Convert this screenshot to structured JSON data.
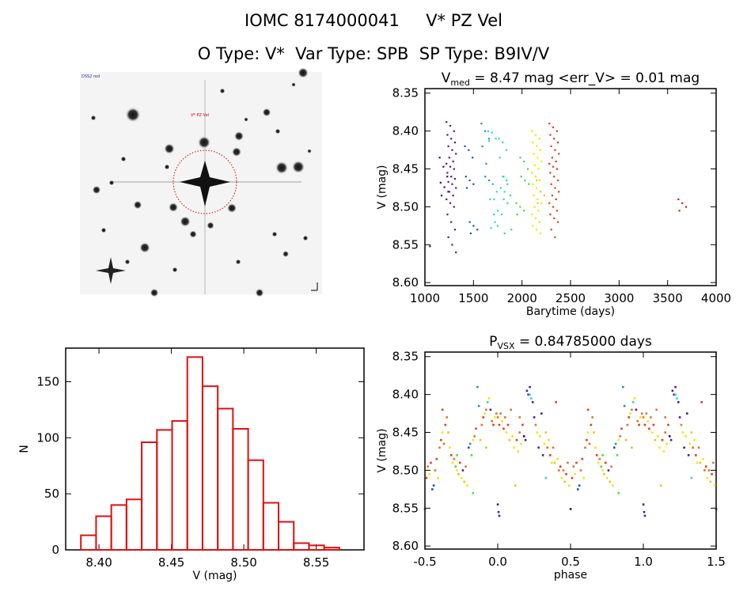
{
  "header": {
    "line1": "IOMC 8174000041     V* PZ Vel",
    "line2": "O Type: V*  Var Type: SPB  SP Type: B9IV/V"
  },
  "finder_image": {
    "survey_label": "DSS2 red",
    "target_label": "V* PZ Vel",
    "target_circle_color": "#cc0000"
  },
  "palette": [
    "#3a0a6a",
    "#4a1aa0",
    "#2050b0",
    "#1e90d8",
    "#30d0e8",
    "#30e090",
    "#40e040",
    "#a0e020",
    "#f0e800",
    "#f0c020",
    "#e87020",
    "#e04010",
    "#d02020"
  ],
  "chart_data": [
    {
      "type": "scatter",
      "title_main": "V",
      "title_sub": "med",
      "title_rest": " = 8.47 mag <err_V> = 0.01 mag",
      "xlabel": "Barytime (days)",
      "ylabel": "V (mag)",
      "xlim": [
        1000,
        4000
      ],
      "ylim": [
        8.344,
        8.604
      ],
      "y_inverted": true,
      "xticks": [
        "1000",
        "1500",
        "2000",
        "2500",
        "3000",
        "3500",
        "4000"
      ],
      "yticks": [
        "8.35",
        "8.40",
        "8.45",
        "8.50",
        "8.55",
        "8.60"
      ],
      "seasons": [
        {
          "t": 1100,
          "c": 0,
          "v": [
            8.552
          ]
        },
        {
          "t": 1200,
          "c": 0,
          "v": [
            8.435,
            8.447,
            8.46,
            8.468,
            8.474,
            8.48,
            8.485
          ]
        },
        {
          "t": 1270,
          "c": 1,
          "v": [
            8.388,
            8.393,
            8.4,
            8.405,
            8.41,
            8.415,
            8.42,
            8.425,
            8.43,
            8.435,
            8.44,
            8.443,
            8.447,
            8.45,
            8.455,
            8.46,
            8.463,
            8.467,
            8.47,
            8.475,
            8.48,
            8.485,
            8.49,
            8.495,
            8.5,
            8.51,
            8.52,
            8.53,
            8.54,
            8.55,
            8.56
          ]
        },
        {
          "t": 1460,
          "c": 2,
          "v": [
            8.42,
            8.425,
            8.435,
            8.46,
            8.465,
            8.47,
            8.475
          ]
        },
        {
          "t": 1510,
          "c": 2,
          "v": [
            8.52,
            8.525,
            8.53,
            8.535
          ]
        },
        {
          "t": 1630,
          "c": 3,
          "v": [
            8.39,
            8.4,
            8.41,
            8.42,
            8.443
          ]
        },
        {
          "t": 1670,
          "c": 3,
          "v": [
            8.46,
            8.465,
            8.47
          ]
        },
        {
          "t": 1700,
          "c": 4,
          "v": [
            8.4,
            8.402,
            8.41,
            8.413,
            8.47,
            8.48,
            8.49,
            8.51,
            8.525,
            8.528
          ]
        },
        {
          "t": 1760,
          "c": 5,
          "v": [
            8.49,
            8.505,
            8.51,
            8.52
          ]
        },
        {
          "t": 1810,
          "c": 5,
          "v": [
            8.41,
            8.415,
            8.425,
            8.435,
            8.46,
            8.47,
            8.475,
            8.48
          ]
        },
        {
          "t": 1850,
          "c": 5,
          "v": [
            8.46,
            8.465,
            8.485,
            8.49,
            8.495,
            8.53,
            8.535
          ]
        },
        {
          "t": 1990,
          "c": 6,
          "v": [
            8.495,
            8.5,
            8.505,
            8.51
          ]
        },
        {
          "t": 2030,
          "c": 6,
          "v": [
            8.435,
            8.44,
            8.45,
            8.46,
            8.465,
            8.47
          ]
        },
        {
          "t": 2150,
          "c": 8,
          "v": [
            8.4,
            8.405,
            8.41,
            8.415,
            8.42,
            8.425,
            8.43,
            8.435,
            8.44,
            8.445,
            8.45,
            8.455,
            8.46,
            8.465,
            8.47,
            8.475,
            8.48,
            8.485,
            8.49,
            8.495,
            8.5,
            8.505,
            8.51,
            8.515,
            8.52,
            8.525,
            8.53,
            8.535
          ]
        },
        {
          "t": 2200,
          "c": 9,
          "v": [
            8.465,
            8.48,
            8.485,
            8.495
          ]
        },
        {
          "t": 2330,
          "c": 11,
          "v": [
            8.39,
            8.395,
            8.4,
            8.405,
            8.41,
            8.415,
            8.42,
            8.425,
            8.43,
            8.435,
            8.44,
            8.443,
            8.447,
            8.45,
            8.455,
            8.46,
            8.465,
            8.47,
            8.475,
            8.48,
            8.485,
            8.49,
            8.495,
            8.5,
            8.505,
            8.51,
            8.515,
            8.52,
            8.53,
            8.54
          ]
        },
        {
          "t": 3660,
          "c": 12,
          "v": [
            8.49,
            8.495,
            8.5,
            8.505
          ]
        }
      ]
    },
    {
      "type": "bar",
      "xlabel": "V (mag)",
      "ylabel": "N",
      "xlim": [
        8.377,
        8.583
      ],
      "ylim": [
        0,
        180
      ],
      "xticks": [
        "8.40",
        "8.45",
        "8.50",
        "8.55"
      ],
      "yticks": [
        "0",
        "50",
        "100",
        "150"
      ],
      "bin_start": 8.3875,
      "bin_width": 0.0105,
      "counts": [
        13,
        30,
        40,
        45,
        96,
        107,
        115,
        172,
        146,
        126,
        108,
        80,
        42,
        25,
        6,
        4,
        2
      ],
      "bar_color": "#dd1111"
    },
    {
      "type": "scatter",
      "title_main": "P",
      "title_sub": "VSX",
      "title_rest": " = 0.84785000 days",
      "xlabel": "phase",
      "ylabel": "V (mag)",
      "xlim": [
        -0.5,
        1.5
      ],
      "ylim": [
        8.344,
        8.604
      ],
      "y_inverted": true,
      "xticks": [
        "-0.5",
        "0.0",
        "0.5",
        "1.0",
        "1.5"
      ],
      "yticks": [
        "8.35",
        "8.40",
        "8.45",
        "8.50",
        "8.55",
        "8.60"
      ],
      "points": [
        [
          0.0,
          8.43,
          10
        ],
        [
          0.01,
          8.44,
          11
        ],
        [
          0.02,
          8.425,
          10
        ],
        [
          0.03,
          8.435,
          8
        ],
        [
          0.04,
          8.445,
          11
        ],
        [
          0.05,
          8.43,
          10
        ],
        [
          0.06,
          8.45,
          8
        ],
        [
          0.07,
          8.44,
          11
        ],
        [
          0.08,
          8.46,
          9
        ],
        [
          0.09,
          8.42,
          10
        ],
        [
          0.1,
          8.455,
          8
        ],
        [
          0.11,
          8.47,
          8
        ],
        [
          0.12,
          8.52,
          9
        ],
        [
          0.13,
          8.46,
          11
        ],
        [
          0.14,
          8.475,
          8
        ],
        [
          0.15,
          8.45,
          10
        ],
        [
          0.16,
          8.465,
          8
        ],
        [
          0.17,
          8.44,
          11
        ],
        [
          0.18,
          8.455,
          0
        ],
        [
          0.19,
          8.46,
          1
        ],
        [
          0.2,
          8.395,
          1
        ],
        [
          0.21,
          8.4,
          1
        ],
        [
          0.22,
          8.39,
          1
        ],
        [
          0.23,
          8.405,
          4
        ],
        [
          0.24,
          8.41,
          1
        ],
        [
          0.25,
          8.43,
          1
        ],
        [
          0.26,
          8.44,
          10
        ],
        [
          0.27,
          8.45,
          8
        ],
        [
          0.28,
          8.47,
          1
        ],
        [
          0.29,
          8.455,
          8
        ],
        [
          0.3,
          8.425,
          1
        ],
        [
          0.31,
          8.48,
          1
        ],
        [
          0.32,
          8.465,
          8
        ],
        [
          0.33,
          8.45,
          9
        ],
        [
          0.34,
          8.47,
          10
        ],
        [
          0.35,
          8.46,
          8
        ],
        [
          0.36,
          8.48,
          11
        ],
        [
          0.37,
          8.49,
          8
        ],
        [
          0.38,
          8.47,
          10
        ],
        [
          0.39,
          8.49,
          9
        ],
        [
          0.4,
          8.41,
          11
        ],
        [
          0.41,
          8.485,
          8
        ],
        [
          0.42,
          8.5,
          10
        ],
        [
          0.43,
          8.495,
          11
        ],
        [
          0.44,
          8.51,
          8
        ],
        [
          0.45,
          8.5,
          10
        ],
        [
          0.46,
          8.515,
          9
        ],
        [
          0.47,
          8.505,
          11
        ],
        [
          0.48,
          8.49,
          10
        ],
        [
          0.49,
          8.52,
          8
        ],
        [
          0.5,
          8.551,
          0
        ],
        [
          0.51,
          8.51,
          11
        ],
        [
          0.52,
          8.495,
          10
        ],
        [
          0.53,
          8.505,
          8
        ],
        [
          0.54,
          8.49,
          11
        ],
        [
          0.55,
          8.525,
          2
        ],
        [
          0.56,
          8.52,
          2
        ],
        [
          0.57,
          8.5,
          10
        ],
        [
          0.58,
          8.485,
          11
        ],
        [
          0.59,
          8.51,
          8
        ],
        [
          0.6,
          8.47,
          10
        ],
        [
          0.61,
          8.46,
          11
        ],
        [
          0.62,
          8.45,
          8
        ],
        [
          0.63,
          8.465,
          10
        ],
        [
          0.64,
          8.44,
          11
        ],
        [
          0.65,
          8.43,
          10
        ],
        [
          0.66,
          8.45,
          9
        ],
        [
          0.67,
          8.47,
          8
        ],
        [
          0.68,
          8.48,
          11
        ],
        [
          0.69,
          8.49,
          8
        ],
        [
          0.7,
          8.485,
          10
        ],
        [
          0.71,
          8.495,
          6
        ],
        [
          0.72,
          8.5,
          8
        ],
        [
          0.73,
          8.505,
          9
        ],
        [
          0.74,
          8.49,
          11
        ],
        [
          0.75,
          8.51,
          8
        ],
        [
          0.76,
          8.5,
          1
        ],
        [
          0.77,
          8.515,
          9
        ],
        [
          0.78,
          8.495,
          10
        ],
        [
          0.79,
          8.52,
          8
        ],
        [
          0.8,
          8.47,
          2
        ],
        [
          0.81,
          8.465,
          3
        ],
        [
          0.82,
          8.48,
          6
        ],
        [
          0.83,
          8.46,
          8
        ],
        [
          0.84,
          8.455,
          10
        ],
        [
          0.85,
          8.445,
          11
        ],
        [
          0.86,
          8.39,
          3
        ],
        [
          0.87,
          8.415,
          3
        ],
        [
          0.88,
          8.46,
          9
        ],
        [
          0.89,
          8.44,
          10
        ],
        [
          0.9,
          8.43,
          11
        ],
        [
          0.91,
          8.425,
          8
        ],
        [
          0.92,
          8.42,
          10
        ],
        [
          0.93,
          8.41,
          5
        ],
        [
          0.94,
          8.405,
          8
        ],
        [
          0.95,
          8.42,
          1
        ],
        [
          0.96,
          8.435,
          10
        ],
        [
          0.97,
          8.44,
          11
        ],
        [
          0.98,
          8.43,
          8
        ],
        [
          0.99,
          8.425,
          10
        ],
        [
          0.0,
          8.545,
          1
        ],
        [
          0.005,
          8.555,
          1
        ],
        [
          0.01,
          8.56,
          1
        ],
        [
          0.22,
          8.4,
          4
        ],
        [
          0.33,
          8.51,
          4
        ],
        [
          0.72,
          8.48,
          6
        ],
        [
          0.83,
          8.53,
          6
        ],
        [
          0.15,
          8.43,
          10
        ],
        [
          0.62,
          8.42,
          11
        ],
        [
          0.92,
          8.47,
          7
        ]
      ]
    }
  ]
}
